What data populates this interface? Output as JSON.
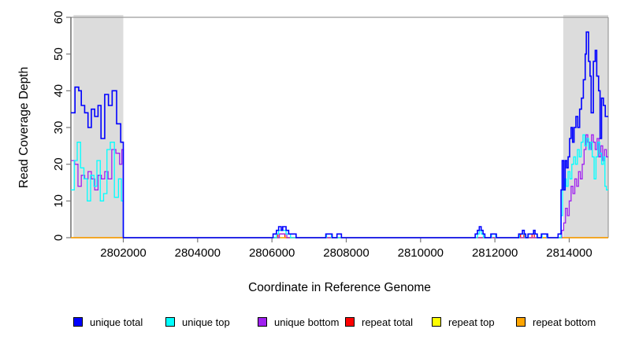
{
  "figure": {
    "background": "#FFFFFF"
  },
  "colors": {
    "region_shade": "#DCDCDC",
    "box": "#9A9A9A",
    "axis": "#4A4A4A",
    "tick": "#7A7A7A",
    "text": "#000000"
  },
  "chart_data": {
    "type": "line",
    "subtype": "step-coverage-plot",
    "title": "",
    "xlabel": "Coordinate in Reference Genome",
    "ylabel": "Read Coverage Depth",
    "xlim": [
      2800590,
      2815050
    ],
    "ylim": [
      0,
      60
    ],
    "x_ticks": [
      2802000,
      2804000,
      2806000,
      2808000,
      2810000,
      2812000,
      2814000
    ],
    "y_ticks": [
      0,
      10,
      20,
      30,
      40,
      50,
      60
    ],
    "grid": false,
    "legend_position": "bottom",
    "highlight_regions": [
      {
        "name": "left-repeat-region",
        "from": 2800660,
        "to": 2802000
      },
      {
        "name": "right-repeat-region",
        "from": 2813840,
        "to": 2815050
      }
    ],
    "series": [
      {
        "key": "unique-total",
        "name": "unique total",
        "color": "#0000FF",
        "width": 1.6,
        "points": [
          [
            2800590,
            34
          ],
          [
            2800700,
            41
          ],
          [
            2800800,
            40
          ],
          [
            2800870,
            36
          ],
          [
            2800960,
            34
          ],
          [
            2801050,
            30
          ],
          [
            2801140,
            35
          ],
          [
            2801230,
            33
          ],
          [
            2801320,
            36
          ],
          [
            2801400,
            27
          ],
          [
            2801500,
            39
          ],
          [
            2801600,
            36
          ],
          [
            2801700,
            40
          ],
          [
            2801820,
            31
          ],
          [
            2801930,
            26
          ],
          [
            2802000,
            0
          ],
          [
            2806030,
            1
          ],
          [
            2806120,
            2
          ],
          [
            2806180,
            3
          ],
          [
            2806250,
            2
          ],
          [
            2806290,
            3
          ],
          [
            2806380,
            2
          ],
          [
            2806450,
            1
          ],
          [
            2806650,
            0
          ],
          [
            2807450,
            1
          ],
          [
            2807620,
            0
          ],
          [
            2807750,
            1
          ],
          [
            2807870,
            0
          ],
          [
            2811470,
            1
          ],
          [
            2811530,
            2
          ],
          [
            2811580,
            3
          ],
          [
            2811630,
            2
          ],
          [
            2811680,
            1
          ],
          [
            2811730,
            0
          ],
          [
            2811890,
            1
          ],
          [
            2812040,
            0
          ],
          [
            2812640,
            1
          ],
          [
            2812740,
            2
          ],
          [
            2812790,
            1
          ],
          [
            2812830,
            0
          ],
          [
            2812890,
            1
          ],
          [
            2813040,
            2
          ],
          [
            2813080,
            1
          ],
          [
            2813140,
            0
          ],
          [
            2813250,
            1
          ],
          [
            2813420,
            0
          ],
          [
            2813700,
            1
          ],
          [
            2813780,
            13
          ],
          [
            2813810,
            21
          ],
          [
            2813850,
            13
          ],
          [
            2813890,
            21
          ],
          [
            2813930,
            19
          ],
          [
            2813970,
            22
          ],
          [
            2814010,
            27
          ],
          [
            2814050,
            30
          ],
          [
            2814090,
            26
          ],
          [
            2814130,
            30
          ],
          [
            2814180,
            33
          ],
          [
            2814230,
            30
          ],
          [
            2814280,
            35
          ],
          [
            2814330,
            38
          ],
          [
            2814380,
            43
          ],
          [
            2814430,
            50
          ],
          [
            2814460,
            56
          ],
          [
            2814520,
            48
          ],
          [
            2814560,
            44
          ],
          [
            2814590,
            34
          ],
          [
            2814650,
            48
          ],
          [
            2814700,
            51
          ],
          [
            2814740,
            44
          ],
          [
            2814790,
            40
          ],
          [
            2814830,
            27
          ],
          [
            2814870,
            38
          ],
          [
            2814920,
            36
          ],
          [
            2814970,
            33
          ]
        ]
      },
      {
        "key": "unique-top",
        "name": "unique top",
        "color": "#00FFFF",
        "width": 1.3,
        "points": [
          [
            2800590,
            13
          ],
          [
            2800680,
            21
          ],
          [
            2800760,
            26
          ],
          [
            2800850,
            19
          ],
          [
            2800940,
            16
          ],
          [
            2801030,
            10
          ],
          [
            2801120,
            17
          ],
          [
            2801210,
            14
          ],
          [
            2801290,
            21
          ],
          [
            2801380,
            10
          ],
          [
            2801470,
            12
          ],
          [
            2801560,
            24
          ],
          [
            2801650,
            26
          ],
          [
            2801760,
            11
          ],
          [
            2801870,
            16
          ],
          [
            2801950,
            10
          ],
          [
            2802000,
            0
          ],
          [
            2806120,
            1
          ],
          [
            2806180,
            2
          ],
          [
            2806380,
            1
          ],
          [
            2806500,
            0
          ],
          [
            2807470,
            1
          ],
          [
            2807600,
            0
          ],
          [
            2811530,
            1
          ],
          [
            2811580,
            2
          ],
          [
            2811630,
            1
          ],
          [
            2811690,
            0
          ],
          [
            2811910,
            1
          ],
          [
            2812020,
            0
          ],
          [
            2812660,
            1
          ],
          [
            2812810,
            0
          ],
          [
            2812900,
            1
          ],
          [
            2813130,
            0
          ],
          [
            2813270,
            1
          ],
          [
            2813400,
            0
          ],
          [
            2813780,
            6
          ],
          [
            2813820,
            13
          ],
          [
            2813870,
            16
          ],
          [
            2813920,
            14
          ],
          [
            2813970,
            18
          ],
          [
            2814020,
            16
          ],
          [
            2814070,
            20
          ],
          [
            2814120,
            22
          ],
          [
            2814170,
            20
          ],
          [
            2814220,
            24
          ],
          [
            2814270,
            22
          ],
          [
            2814320,
            26
          ],
          [
            2814370,
            28
          ],
          [
            2814420,
            25
          ],
          [
            2814470,
            27
          ],
          [
            2814520,
            24
          ],
          [
            2814570,
            26
          ],
          [
            2814620,
            22
          ],
          [
            2814670,
            16
          ],
          [
            2814720,
            22
          ],
          [
            2814770,
            26
          ],
          [
            2814820,
            23
          ],
          [
            2814870,
            20
          ],
          [
            2814920,
            22
          ],
          [
            2814960,
            14
          ],
          [
            2815000,
            13
          ]
        ]
      },
      {
        "key": "unique-bottom",
        "name": "unique bottom",
        "color": "#A020F0",
        "width": 1.3,
        "points": [
          [
            2800590,
            21
          ],
          [
            2800690,
            20
          ],
          [
            2800780,
            14
          ],
          [
            2800870,
            17
          ],
          [
            2800960,
            16
          ],
          [
            2801050,
            18
          ],
          [
            2801140,
            16
          ],
          [
            2801230,
            13
          ],
          [
            2801320,
            17
          ],
          [
            2801410,
            16
          ],
          [
            2801500,
            18
          ],
          [
            2801590,
            16
          ],
          [
            2801690,
            24
          ],
          [
            2801800,
            23
          ],
          [
            2801900,
            20
          ],
          [
            2801960,
            24
          ],
          [
            2802000,
            0
          ],
          [
            2806200,
            1
          ],
          [
            2806400,
            0
          ],
          [
            2813260,
            1
          ],
          [
            2813390,
            0
          ],
          [
            2813800,
            2
          ],
          [
            2813850,
            4
          ],
          [
            2813900,
            8
          ],
          [
            2813950,
            6
          ],
          [
            2814000,
            10
          ],
          [
            2814050,
            14
          ],
          [
            2814100,
            12
          ],
          [
            2814150,
            16
          ],
          [
            2814200,
            14
          ],
          [
            2814250,
            18
          ],
          [
            2814300,
            16
          ],
          [
            2814350,
            20
          ],
          [
            2814400,
            24
          ],
          [
            2814450,
            28
          ],
          [
            2814500,
            26
          ],
          [
            2814550,
            24
          ],
          [
            2814600,
            28
          ],
          [
            2814650,
            26
          ],
          [
            2814700,
            24
          ],
          [
            2814750,
            27
          ],
          [
            2814800,
            22
          ],
          [
            2814850,
            25
          ],
          [
            2814900,
            21
          ],
          [
            2814950,
            24
          ],
          [
            2815000,
            22
          ]
        ]
      },
      {
        "key": "repeat-total",
        "name": "repeat total",
        "color": "#FF0000",
        "width": 1.3,
        "points": [
          [
            2800590,
            0
          ],
          [
            2806160,
            1
          ],
          [
            2806350,
            0
          ],
          [
            2812690,
            1
          ],
          [
            2812780,
            0
          ],
          [
            2813000,
            1
          ],
          [
            2813060,
            0
          ]
        ]
      },
      {
        "key": "repeat-top",
        "name": "repeat top",
        "color": "#FFFF00",
        "width": 1.3,
        "points": [
          [
            2800590,
            0
          ]
        ]
      },
      {
        "key": "repeat-bottom",
        "name": "repeat bottom",
        "color": "#FFA500",
        "width": 1.3,
        "points": [
          [
            2800590,
            0
          ]
        ]
      }
    ],
    "legend": {
      "entries": [
        {
          "key": "unique-total",
          "label": "unique total",
          "color": "#0000FF"
        },
        {
          "key": "unique-top",
          "label": "unique top",
          "color": "#00FFFF"
        },
        {
          "key": "unique-bottom",
          "label": "unique bottom",
          "color": "#A020F0"
        },
        {
          "key": "repeat-total",
          "label": "repeat total",
          "color": "#FF0000"
        },
        {
          "key": "repeat-top",
          "label": "repeat top",
          "color": "#FFFF00"
        },
        {
          "key": "repeat-bottom",
          "label": "repeat bottom",
          "color": "#FFA500"
        }
      ]
    }
  }
}
